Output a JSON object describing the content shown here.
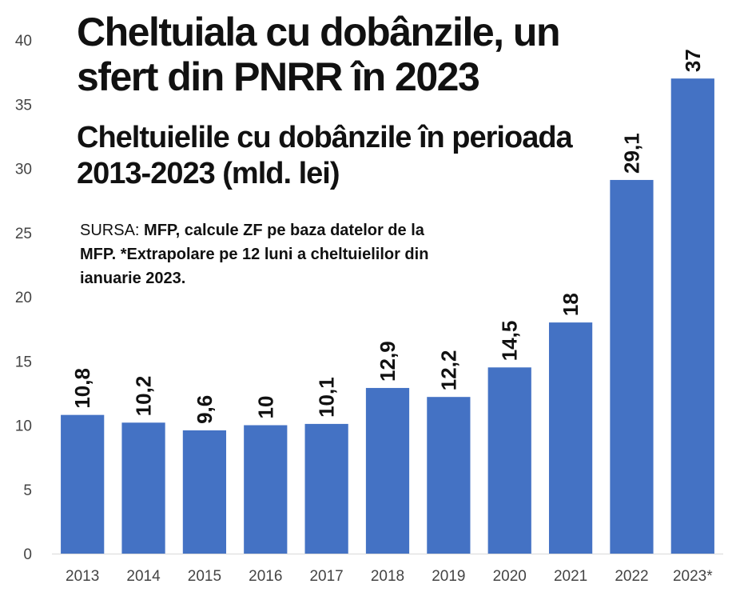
{
  "title": "Cheltuiala cu dobânzile, un sfert din PNRR în 2023",
  "subtitle": "Cheltuielile cu dobânzile în perioada 2013-2023 (mld. lei)",
  "source": {
    "label": "SURSA:",
    "text": "MFP, calcule ZF pe baza datelor de la MFP. *Extrapolare pe 12 luni a cheltuielilor din ianuarie 2023."
  },
  "colors": {
    "bar": "#4472C4",
    "text": "#111111",
    "axis_text": "#444444",
    "axis_line": "#d9d9d9"
  },
  "chart_data": {
    "type": "bar",
    "categories": [
      "2013",
      "2014",
      "2015",
      "2016",
      "2017",
      "2018",
      "2019",
      "2020",
      "2021",
      "2022",
      "2023*"
    ],
    "values": [
      10.8,
      10.2,
      9.6,
      10,
      10.1,
      12.9,
      12.2,
      14.5,
      18,
      29.1,
      37
    ],
    "data_labels": [
      "10,8",
      "10,2",
      "9,6",
      "10",
      "10,1",
      "12,9",
      "12,2",
      "14,5",
      "18",
      "29,1",
      "37"
    ],
    "yticks": [
      "0",
      "5",
      "10",
      "15",
      "20",
      "25",
      "30",
      "35",
      "40"
    ],
    "ylim": [
      0,
      40
    ],
    "grid": false,
    "legend": "none"
  }
}
